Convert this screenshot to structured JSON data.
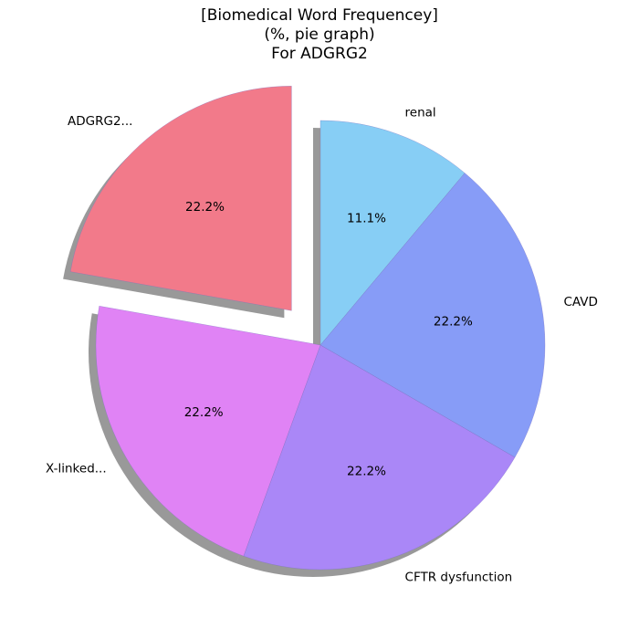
{
  "chart_data": {
    "type": "pie",
    "title_lines": [
      "[Biomedical Word Frequencey]",
      "(%, pie graph)",
      "For ADGRG2"
    ],
    "start_angle_deg": 90,
    "direction": "clockwise",
    "shadow": true,
    "slices": [
      {
        "label": "renal",
        "value": 11.1,
        "pct_label": "11.1%",
        "color": "#87cef5",
        "explode": 0
      },
      {
        "label": "CAVD",
        "value": 22.2,
        "pct_label": "22.2%",
        "color": "#879cf7",
        "explode": 0
      },
      {
        "label": "CFTR dysfunction",
        "value": 22.2,
        "pct_label": "22.2%",
        "color": "#aa87f7",
        "explode": 0
      },
      {
        "label": "X-linked...",
        "value": 22.2,
        "pct_label": "22.2%",
        "color": "#e083f5",
        "explode": 0
      },
      {
        "label": "ADGRG2...",
        "value": 22.2,
        "pct_label": "22.2%",
        "color": "#f27a8a",
        "explode": 0.2
      }
    ]
  }
}
